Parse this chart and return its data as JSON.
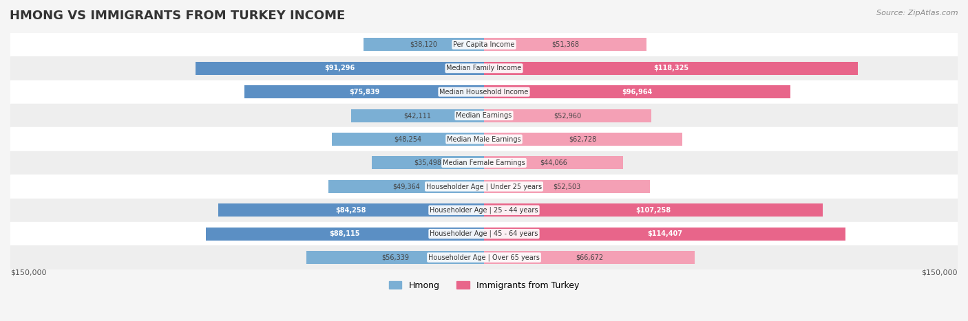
{
  "title": "HMONG VS IMMIGRANTS FROM TURKEY INCOME",
  "source": "Source: ZipAtlas.com",
  "categories": [
    "Per Capita Income",
    "Median Family Income",
    "Median Household Income",
    "Median Earnings",
    "Median Male Earnings",
    "Median Female Earnings",
    "Householder Age | Under 25 years",
    "Householder Age | 25 - 44 years",
    "Householder Age | 45 - 64 years",
    "Householder Age | Over 65 years"
  ],
  "hmong_values": [
    38120,
    91296,
    75839,
    42111,
    48254,
    35498,
    49364,
    84258,
    88115,
    56339
  ],
  "turkey_values": [
    51368,
    118325,
    96964,
    52960,
    62728,
    44066,
    52503,
    107258,
    114407,
    66672
  ],
  "hmong_labels": [
    "$38,120",
    "$91,296",
    "$75,839",
    "$42,111",
    "$48,254",
    "$35,498",
    "$49,364",
    "$84,258",
    "$88,115",
    "$56,339"
  ],
  "turkey_labels": [
    "$51,368",
    "$118,325",
    "$96,964",
    "$52,960",
    "$62,728",
    "$44,066",
    "$52,503",
    "$107,258",
    "$114,407",
    "$66,672"
  ],
  "hmong_color": "#7bafd4",
  "hmong_color_dark": "#5b8fc4",
  "turkey_color": "#f4a0b5",
  "turkey_color_dark": "#e8658a",
  "max_value": 150000,
  "background_color": "#f5f5f5",
  "row_bg_light": "#ffffff",
  "row_bg_dark": "#eeeeee",
  "label_color_inside_hmong": "#ffffff",
  "label_color_inside_turkey": "#ffffff",
  "label_color_outside": "#555555"
}
